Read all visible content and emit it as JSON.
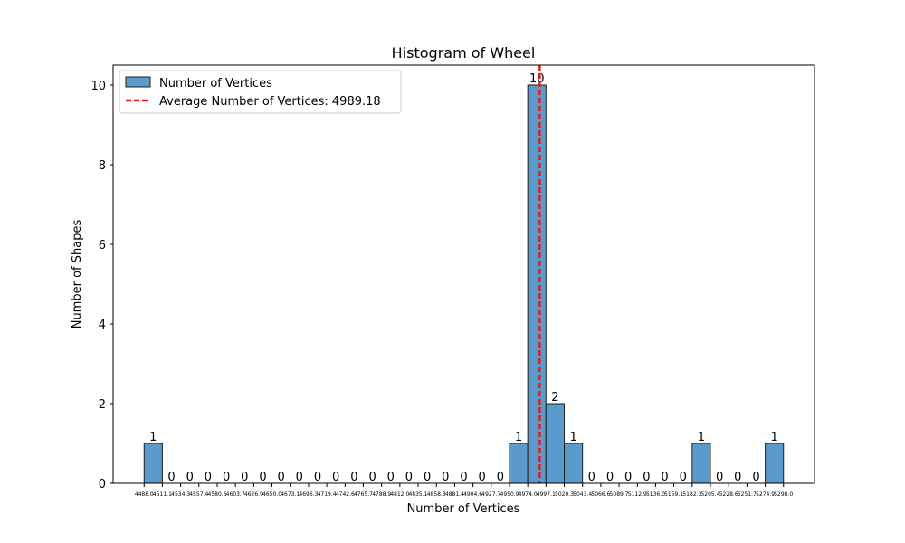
{
  "chart_data": {
    "type": "bar",
    "title": "Histogram of Wheel",
    "xlabel": "Number of Vertices",
    "ylabel": "Number of Shapes",
    "ylim": [
      0,
      10.5
    ],
    "yticks": [
      0,
      2,
      4,
      6,
      8,
      10
    ],
    "bin_edges": [
      4488.0,
      4511.1,
      4534.3,
      4557.4,
      4580.6,
      4603.7,
      4626.9,
      4650.0,
      4673.1,
      4696.3,
      4719.4,
      4742.6,
      4765.7,
      4788.9,
      4812.0,
      4835.1,
      4858.3,
      4881.4,
      4904.6,
      4927.7,
      4950.9,
      4974.0,
      4997.1,
      5020.3,
      5043.4,
      5066.6,
      5089.7,
      5112.9,
      5136.0,
      5159.1,
      5182.3,
      5205.4,
      5228.6,
      5251.7,
      5274.9,
      5298.0
    ],
    "xtick_labels": [
      "4488.0",
      "4511.1",
      "4534.3",
      "4557.4",
      "4580.6",
      "4603.7",
      "4626.9",
      "4650.0",
      "4673.1",
      "4696.3",
      "4719.4",
      "4742.6",
      "4765.7",
      "4788.9",
      "4812.0",
      "4835.1",
      "4858.3",
      "4881.4",
      "4904.6",
      "4927.7",
      "4950.9",
      "4974.0",
      "4997.1",
      "5020.3",
      "5043.4",
      "5066.6",
      "5089.7",
      "5112.9",
      "5136.0",
      "5159.1",
      "5182.3",
      "5205.4",
      "5228.6",
      "5251.7",
      "5274.9",
      "5298.0"
    ],
    "counts": [
      1,
      0,
      0,
      0,
      0,
      0,
      0,
      0,
      0,
      0,
      0,
      0,
      0,
      0,
      0,
      0,
      0,
      0,
      0,
      0,
      1,
      10,
      2,
      1,
      0,
      0,
      0,
      0,
      0,
      0,
      1,
      0,
      0,
      0,
      1
    ],
    "series": [
      {
        "name": "Number of Vertices",
        "color": "#5b9bcb"
      }
    ],
    "average": {
      "value": 4989.18,
      "label": "Average Number of Vertices: 4989.18",
      "color": "#e31a1c",
      "style": "dashed"
    },
    "legend_placement": "top-left",
    "grid": false
  }
}
